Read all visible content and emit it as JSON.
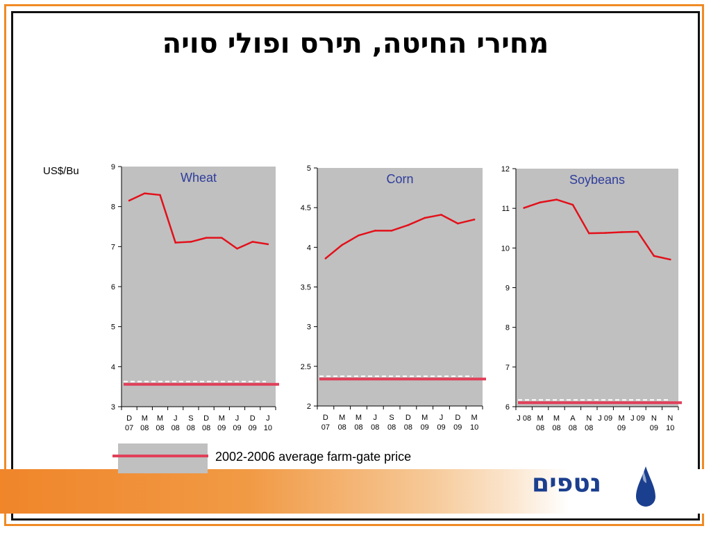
{
  "title": "מחירי החיטה, תירס ופולי סויה",
  "unit_label": "US$/Bu",
  "legend": {
    "label": "2002-2006 average farm-gate price"
  },
  "logo": {
    "text": "נטפים"
  },
  "colors": {
    "plot_bg": "#c0c0c0",
    "line": "#e3101a",
    "reference": "#e0405a",
    "panel_title": "#2e3c9c",
    "frame": "#f08a24"
  },
  "chart_data": [
    {
      "type": "line",
      "title": "Wheat",
      "categories": [
        "D\n07",
        "M\n08",
        "M\n08",
        "J\n08",
        "S\n08",
        "D\n08",
        "M\n09",
        "J\n09",
        "D\n09",
        "J\n10"
      ],
      "values": [
        8.15,
        8.33,
        8.29,
        7.1,
        7.12,
        7.22,
        7.22,
        6.95,
        7.12,
        7.06
      ],
      "reference": 3.56,
      "ylim": [
        3,
        9
      ],
      "yticks": [
        3,
        4,
        5,
        6,
        7,
        8,
        9
      ],
      "xlabel": "",
      "ylabel": ""
    },
    {
      "type": "line",
      "title": "Corn",
      "categories": [
        "D\n07",
        "M\n08",
        "M\n08",
        "J\n08",
        "S\n08",
        "D\n08",
        "M\n09",
        "J\n09",
        "D\n09",
        "M\n10"
      ],
      "values": [
        3.86,
        4.03,
        4.15,
        4.21,
        4.21,
        4.28,
        4.37,
        4.41,
        4.3,
        4.35
      ],
      "reference": 2.34,
      "ylim": [
        2,
        5
      ],
      "yticks": [
        "2",
        "2.5",
        "3",
        "3.5",
        "4",
        "4.5",
        "5"
      ],
      "xlabel": "",
      "ylabel": ""
    },
    {
      "type": "line",
      "title": "Soybeans",
      "categories": [
        "J 08",
        "M\n08",
        "M\n08",
        "A\n08",
        "N\n08",
        "J 09",
        "M\n09",
        "J 09",
        "N\n09",
        "N\n10"
      ],
      "values": [
        11.01,
        11.15,
        11.22,
        11.09,
        10.37,
        10.38,
        10.4,
        10.41,
        9.8,
        9.71
      ],
      "reference": 6.1,
      "ylim": [
        6,
        12
      ],
      "yticks": [
        6,
        7,
        8,
        9,
        10,
        11,
        12
      ],
      "xlabel": "",
      "ylabel": ""
    }
  ]
}
